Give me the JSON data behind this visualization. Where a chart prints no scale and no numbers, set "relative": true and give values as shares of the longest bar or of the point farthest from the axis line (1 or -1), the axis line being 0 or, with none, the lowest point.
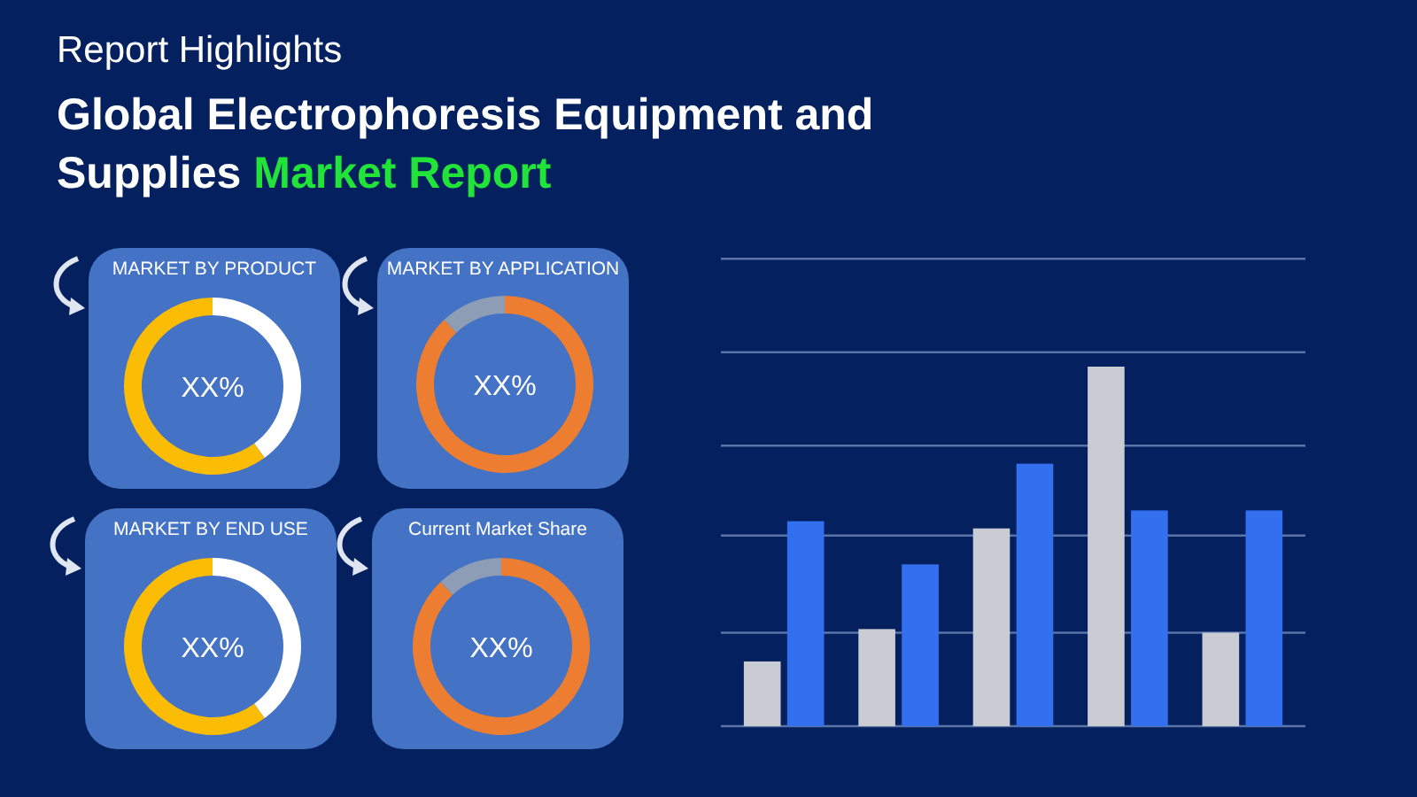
{
  "chart_data": [
    {
      "type": "other",
      "title": "Report Highlights",
      "subtitle": "Global Electrophoresis Equipment and Supplies Market Report"
    },
    {
      "type": "donut",
      "title": "MARKET BY PRODUCT",
      "categories": [
        null,
        null
      ],
      "values": [
        40,
        60
      ],
      "colors": [
        "#ffffff",
        "#fbbc05"
      ],
      "annotations": [
        "XX%"
      ]
    },
    {
      "type": "donut",
      "title": "MARKET BY APPLICATION",
      "categories": [
        null,
        null
      ],
      "values": [
        88,
        12
      ],
      "colors": [
        "#ed7d31",
        "#8c9db5"
      ],
      "annotations": [
        "XX%"
      ]
    },
    {
      "type": "donut",
      "title": "MARKET BY END USE",
      "categories": [
        null,
        null
      ],
      "values": [
        40,
        60
      ],
      "colors": [
        "#ffffff",
        "#fbbc05"
      ],
      "annotations": [
        "XX%"
      ]
    },
    {
      "type": "donut",
      "title": "Current Market Share",
      "categories": [
        null,
        null
      ],
      "values": [
        88,
        12
      ],
      "colors": [
        "#ed7d31",
        "#8c9db5"
      ],
      "annotations": [
        "XX%"
      ]
    },
    {
      "type": "bar",
      "relative": true,
      "categories": [
        null,
        null,
        null,
        null,
        null
      ],
      "ref_lines": [
        {
          "axis": "y",
          "value": 0.26,
          "color": "#5a74a8"
        },
        {
          "axis": "y",
          "value": 0.53,
          "color": "#5a74a8"
        },
        {
          "axis": "y",
          "value": 0.78,
          "color": "#5a74a8"
        },
        {
          "axis": "y",
          "value": 1.04,
          "color": "#5a74a8"
        },
        {
          "axis": "y",
          "value": 1.3,
          "color": "#5a74a8"
        }
      ],
      "series": [
        {
          "color": "#c9ccd3",
          "values": [
            0.18,
            0.27,
            0.55,
            1,
            0.26
          ]
        },
        {
          "color": "#3370f0",
          "values": [
            0.57,
            0.45,
            0.73,
            0.6,
            0.6
          ]
        }
      ]
    }
  ]
}
